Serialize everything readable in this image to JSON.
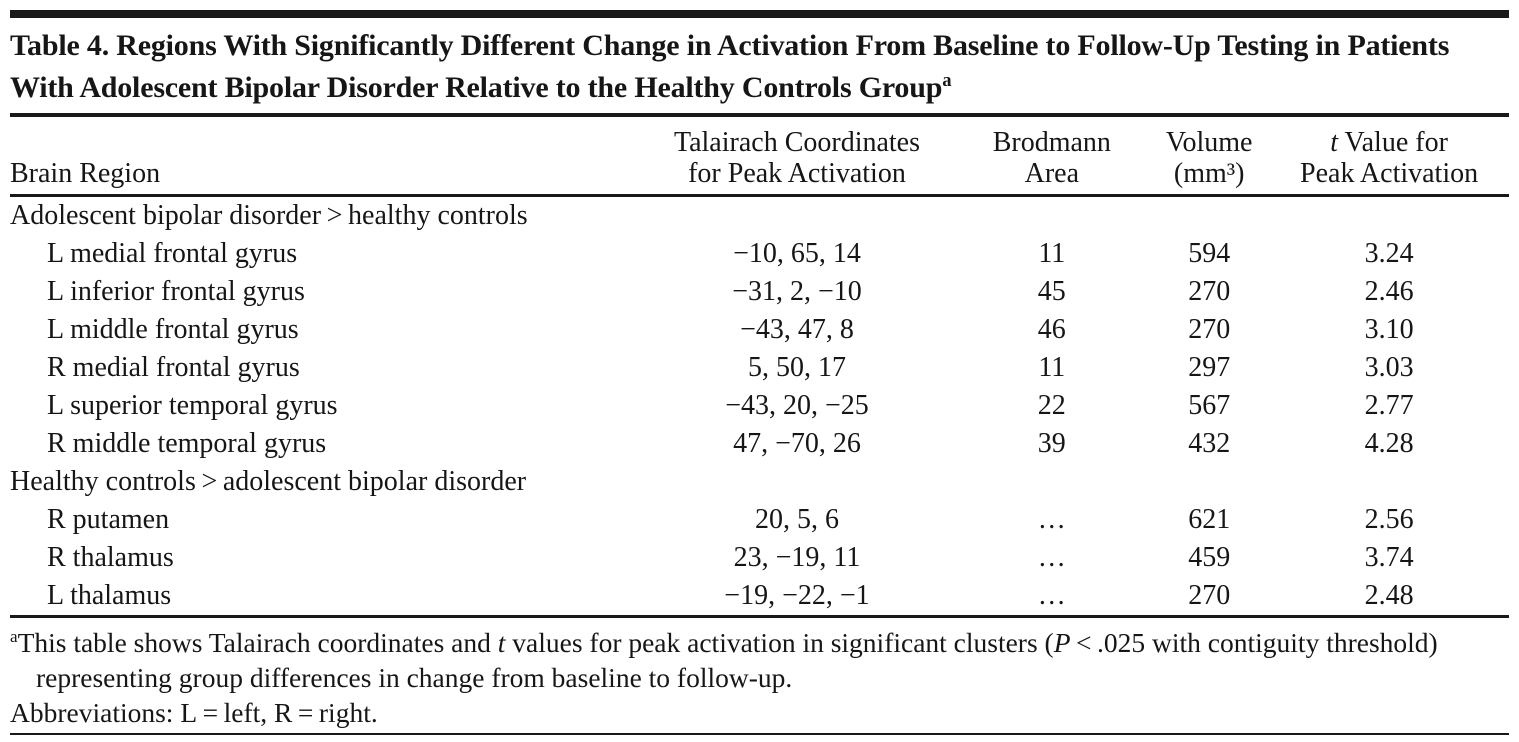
{
  "colors": {
    "background": "#ffffff",
    "text": "#161616",
    "rules": "#191919"
  },
  "title": {
    "text": "Table 4. Regions With Significantly Different Change in Activation From Baseline to Follow-Up Testing in Patients With Adolescent Bipolar Disorder Relative to the Healthy Controls Group",
    "superscript": "a"
  },
  "table": {
    "headers": {
      "brain_region": "Brain Region",
      "talairach_line1": "Talairach Coordinates",
      "talairach_line2": "for Peak Activation",
      "brodmann_line1": "Brodmann",
      "brodmann_line2": "Area",
      "volume_line1": "Volume",
      "volume_line2": "(mm³)",
      "tvalue_italic": "t",
      "tvalue_rest": " Value for",
      "tvalue_line2": "Peak Activation"
    },
    "rows": [
      {
        "type": "section",
        "label": "Adolescent bipolar disorder > healthy controls"
      },
      {
        "type": "data",
        "region": "L medial frontal gyrus",
        "coordinates": "−10, 65, 14",
        "brodmann_area": "11",
        "volume": "594",
        "t_value": "3.24"
      },
      {
        "type": "data",
        "region": "L inferior frontal gyrus",
        "coordinates": "−31, 2, −10",
        "brodmann_area": "45",
        "volume": "270",
        "t_value": "2.46"
      },
      {
        "type": "data",
        "region": "L middle frontal gyrus",
        "coordinates": "−43, 47, 8",
        "brodmann_area": "46",
        "volume": "270",
        "t_value": "3.10"
      },
      {
        "type": "data",
        "region": "R medial frontal gyrus",
        "coordinates": "5, 50, 17",
        "brodmann_area": "11",
        "volume": "297",
        "t_value": "3.03"
      },
      {
        "type": "data",
        "region": "L superior temporal gyrus",
        "coordinates": "−43, 20, −25",
        "brodmann_area": "22",
        "volume": "567",
        "t_value": "2.77"
      },
      {
        "type": "data",
        "region": "R middle temporal gyrus",
        "coordinates": "47, −70, 26",
        "brodmann_area": "39",
        "volume": "432",
        "t_value": "4.28"
      },
      {
        "type": "section",
        "label": "Healthy controls > adolescent bipolar disorder"
      },
      {
        "type": "data",
        "region": "R putamen",
        "coordinates": "20, 5, 6",
        "brodmann_area": "…",
        "volume": "621",
        "t_value": "2.56"
      },
      {
        "type": "data",
        "region": "R thalamus",
        "coordinates": "23, −19, 11",
        "brodmann_area": "…",
        "volume": "459",
        "t_value": "3.74"
      },
      {
        "type": "data",
        "region": "L thalamus",
        "coordinates": "−19, −22, −1",
        "brodmann_area": "…",
        "volume": "270",
        "t_value": "2.48"
      }
    ]
  },
  "footnotes": {
    "note_a": {
      "marker": "a",
      "segments": [
        {
          "text": "This table shows Talairach coordinates and "
        },
        {
          "text": "t",
          "italic": true
        },
        {
          "text": " values for peak activation in significant clusters ("
        },
        {
          "text": "P",
          "italic": true
        },
        {
          "text": " < .025 with contiguity threshold) representing group differences in change from baseline to follow-up."
        }
      ]
    },
    "abbreviations": "Abbreviations: L = left, R = right."
  }
}
